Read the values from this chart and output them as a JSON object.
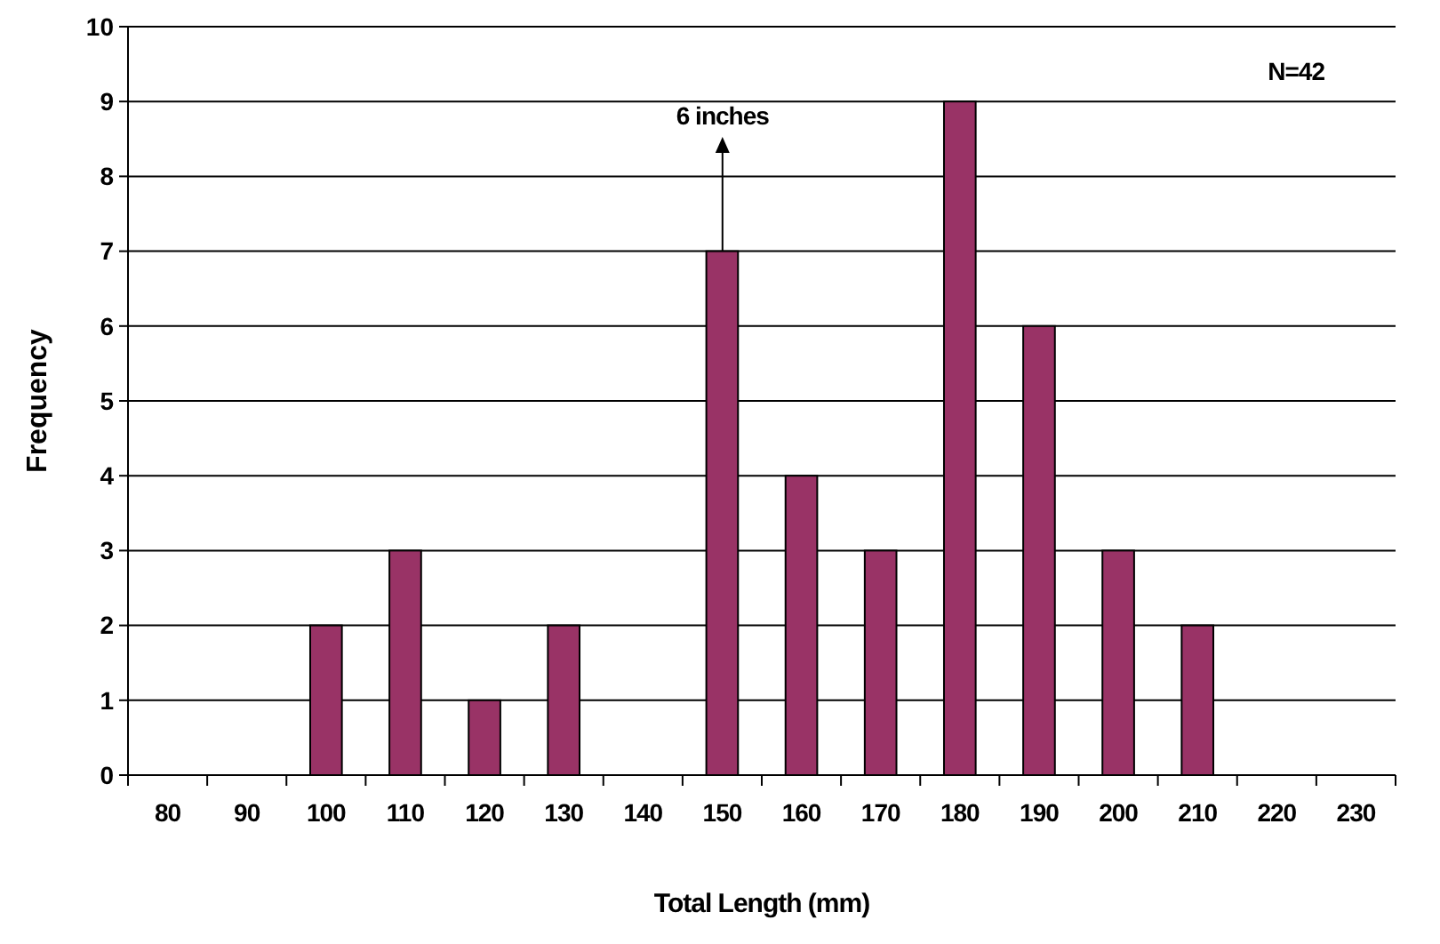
{
  "chart_data": {
    "type": "bar",
    "xlabel": "Total Length (mm)",
    "ylabel": "Frequency",
    "categories": [
      "80",
      "90",
      "100",
      "110",
      "120",
      "130",
      "140",
      "150",
      "160",
      "170",
      "180",
      "190",
      "200",
      "210",
      "220",
      "230"
    ],
    "values": [
      0,
      0,
      2,
      3,
      1,
      2,
      0,
      7,
      4,
      3,
      9,
      6,
      3,
      2,
      0,
      0
    ],
    "color": "#993366",
    "ylim": [
      0,
      10
    ],
    "yticks": [
      0,
      1,
      2,
      3,
      4,
      5,
      6,
      7,
      8,
      9,
      10
    ],
    "grid": "y",
    "annotations": [
      "N=42",
      "6 inches"
    ]
  }
}
